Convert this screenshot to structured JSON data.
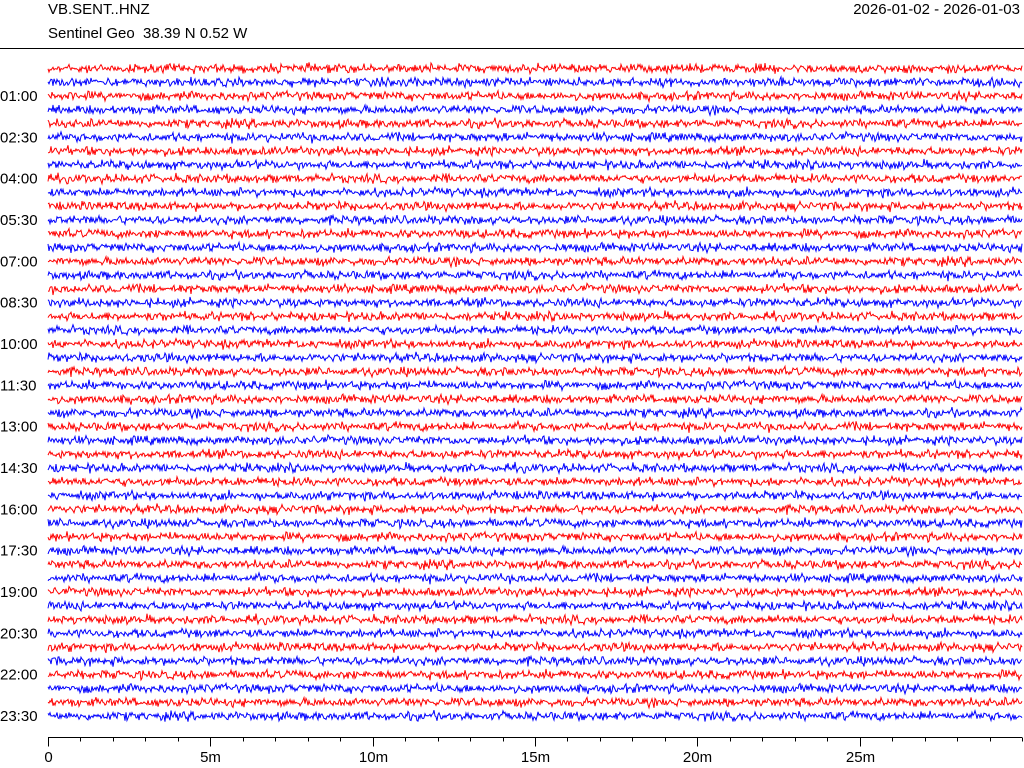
{
  "chart_data": {
    "type": "helicorder",
    "title": "VB.SENT..HNZ",
    "subtitle": "Sentinel Geo  38.39 N 0.52 W",
    "date_range": "2026-01-02 - 2026-01-03",
    "categories": [
      null,
      null,
      "01:00",
      null,
      null,
      "02:30",
      null,
      null,
      "04:00",
      null,
      null,
      "05:30",
      null,
      null,
      "07:00",
      null,
      null,
      "08:30",
      null,
      null,
      "10:00",
      null,
      null,
      "11:30",
      null,
      null,
      "13:00",
      null,
      null,
      "14:30",
      null,
      null,
      "16:00",
      null,
      null,
      "17:30",
      null,
      null,
      "19:00",
      null,
      null,
      "20:30",
      null,
      null,
      "22:00",
      null,
      null,
      "23:30"
    ],
    "colors": [
      "#ff0000",
      "#0000ff"
    ],
    "xlim": [
      0,
      30
    ],
    "xticks": [
      0,
      {
        "value": 5,
        "label": "5m"
      },
      {
        "value": 10,
        "label": "10m"
      },
      {
        "value": 15,
        "label": "15m"
      },
      {
        "value": 20,
        "label": "20m"
      },
      {
        "value": 25,
        "label": "25m"
      }
    ],
    "minor_xticks": [
      0,
      1,
      2,
      3,
      4,
      5,
      6,
      7,
      8,
      9,
      10,
      11,
      12,
      13,
      14,
      15,
      16,
      17,
      18,
      19,
      20,
      21,
      22,
      23,
      24,
      25,
      26,
      27,
      28,
      29,
      30
    ]
  }
}
